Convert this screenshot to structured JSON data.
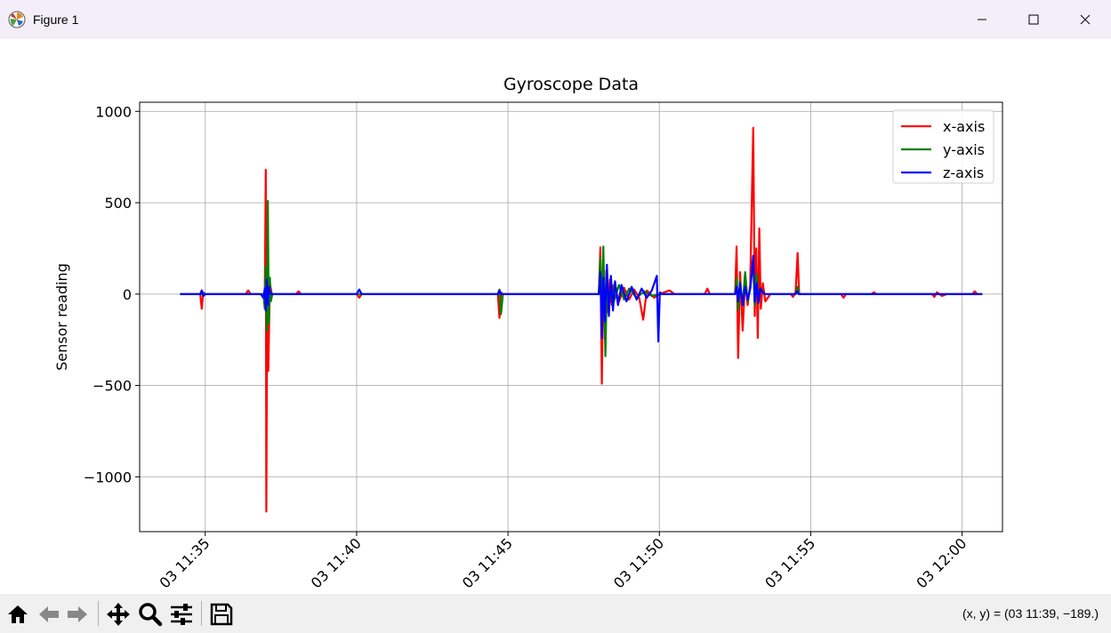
{
  "window": {
    "title": "Figure 1",
    "minimize_icon": "minimize-icon",
    "maximize_icon": "maximize-icon",
    "close_icon": "close-icon"
  },
  "toolbar": {
    "tools": [
      {
        "name": "home-icon"
      },
      {
        "name": "back-arrow-icon"
      },
      {
        "name": "forward-arrow-icon"
      },
      {
        "name": "pan-icon"
      },
      {
        "name": "zoom-icon"
      },
      {
        "name": "configure-subplots-icon"
      },
      {
        "name": "save-icon"
      }
    ],
    "coordinate_readout": "(x, y) = (03 11:39, −189.)"
  },
  "chart_data": {
    "type": "line",
    "title": "Gyroscope Data",
    "xlabel": "",
    "ylabel": "Sensor reading",
    "xlim": [
      "03 11:32:50",
      "03 12:01:20"
    ],
    "ylim": [
      -1300,
      1050
    ],
    "x_ticks": [
      "03 11:35",
      "03 11:40",
      "03 11:45",
      "03 11:50",
      "03 11:55",
      "03 12:00"
    ],
    "y_ticks": [
      {
        "value": 1000,
        "label": "1000"
      },
      {
        "value": 500,
        "label": "500"
      },
      {
        "value": 0,
        "label": "0"
      },
      {
        "value": -500,
        "label": "−500"
      },
      {
        "value": -1000,
        "label": "−1000"
      }
    ],
    "grid": true,
    "legend_position": "top-right",
    "series": [
      {
        "name": "x-axis",
        "color": "#ff0000",
        "points": [
          [
            "11:34:10",
            0
          ],
          [
            "11:34:50",
            0
          ],
          [
            "11:34:53",
            -80
          ],
          [
            "11:34:56",
            10
          ],
          [
            "11:35:00",
            0
          ],
          [
            "11:36:20",
            0
          ],
          [
            "11:36:25",
            20
          ],
          [
            "11:36:30",
            0
          ],
          [
            "11:36:58",
            0
          ],
          [
            "11:37:00",
            680
          ],
          [
            "11:37:01",
            -1190
          ],
          [
            "11:37:03",
            120
          ],
          [
            "11:37:05",
            -420
          ],
          [
            "11:37:08",
            60
          ],
          [
            "11:37:12",
            0
          ],
          [
            "11:38:00",
            0
          ],
          [
            "11:38:05",
            15
          ],
          [
            "11:38:10",
            0
          ],
          [
            "11:40:00",
            0
          ],
          [
            "11:40:05",
            -20
          ],
          [
            "11:40:10",
            0
          ],
          [
            "11:44:40",
            0
          ],
          [
            "11:44:43",
            -130
          ],
          [
            "11:44:46",
            10
          ],
          [
            "11:44:50",
            0
          ],
          [
            "11:48:00",
            0
          ],
          [
            "11:48:03",
            255
          ],
          [
            "11:48:06",
            -490
          ],
          [
            "11:48:09",
            200
          ],
          [
            "11:48:12",
            -250
          ],
          [
            "11:48:15",
            130
          ],
          [
            "11:48:18",
            -100
          ],
          [
            "11:48:22",
            80
          ],
          [
            "11:48:26",
            -60
          ],
          [
            "11:48:30",
            50
          ],
          [
            "11:48:40",
            -40
          ],
          [
            "11:48:50",
            35
          ],
          [
            "11:49:00",
            -30
          ],
          [
            "11:49:10",
            25
          ],
          [
            "11:49:20",
            -20
          ],
          [
            "11:49:28",
            -140
          ],
          [
            "11:49:35",
            20
          ],
          [
            "11:49:50",
            -20
          ],
          [
            "11:50:00",
            0
          ],
          [
            "11:50:20",
            20
          ],
          [
            "11:50:30",
            0
          ],
          [
            "11:51:30",
            0
          ],
          [
            "11:51:35",
            30
          ],
          [
            "11:51:40",
            0
          ],
          [
            "11:52:30",
            0
          ],
          [
            "11:52:33",
            260
          ],
          [
            "11:52:36",
            -350
          ],
          [
            "11:52:40",
            120
          ],
          [
            "11:52:45",
            -200
          ],
          [
            "11:52:50",
            80
          ],
          [
            "11:52:55",
            -60
          ],
          [
            "11:53:00",
            50
          ],
          [
            "11:53:06",
            910
          ],
          [
            "11:53:09",
            -120
          ],
          [
            "11:53:12",
            250
          ],
          [
            "11:53:15",
            -240
          ],
          [
            "11:53:18",
            360
          ],
          [
            "11:53:21",
            -80
          ],
          [
            "11:53:25",
            60
          ],
          [
            "11:53:30",
            -40
          ],
          [
            "11:53:40",
            0
          ],
          [
            "11:54:20",
            0
          ],
          [
            "11:54:25",
            -15
          ],
          [
            "11:54:30",
            10
          ],
          [
            "11:54:34",
            225
          ],
          [
            "11:54:37",
            0
          ],
          [
            "11:56:00",
            0
          ],
          [
            "11:56:05",
            -20
          ],
          [
            "11:56:10",
            0
          ],
          [
            "11:57:00",
            0
          ],
          [
            "11:57:05",
            10
          ],
          [
            "11:57:10",
            0
          ],
          [
            "11:59:00",
            0
          ],
          [
            "11:59:05",
            -15
          ],
          [
            "11:59:10",
            10
          ],
          [
            "11:59:20",
            -10
          ],
          [
            "11:59:30",
            0
          ],
          [
            "12:00:20",
            0
          ],
          [
            "12:00:25",
            15
          ],
          [
            "12:00:30",
            0
          ],
          [
            "12:00:40",
            0
          ]
        ]
      },
      {
        "name": "y-axis",
        "color": "#008000",
        "points": [
          [
            "11:34:10",
            0
          ],
          [
            "11:34:52",
            0
          ],
          [
            "11:34:55",
            10
          ],
          [
            "11:34:58",
            0
          ],
          [
            "11:36:55",
            0
          ],
          [
            "11:36:58",
            -80
          ],
          [
            "11:37:00",
            150
          ],
          [
            "11:37:02",
            -200
          ],
          [
            "11:37:04",
            510
          ],
          [
            "11:37:06",
            -160
          ],
          [
            "11:37:08",
            90
          ],
          [
            "11:37:10",
            -40
          ],
          [
            "11:37:13",
            0
          ],
          [
            "11:44:40",
            0
          ],
          [
            "11:44:43",
            25
          ],
          [
            "11:44:46",
            -110
          ],
          [
            "11:44:50",
            0
          ],
          [
            "11:48:00",
            0
          ],
          [
            "11:48:03",
            200
          ],
          [
            "11:48:06",
            -120
          ],
          [
            "11:48:09",
            260
          ],
          [
            "11:48:13",
            -340
          ],
          [
            "11:48:16",
            80
          ],
          [
            "11:48:20",
            -80
          ],
          [
            "11:48:25",
            60
          ],
          [
            "11:48:30",
            -40
          ],
          [
            "11:48:40",
            50
          ],
          [
            "11:48:50",
            -30
          ],
          [
            "11:49:00",
            30
          ],
          [
            "11:49:15",
            -20
          ],
          [
            "11:49:30",
            15
          ],
          [
            "11:49:45",
            -10
          ],
          [
            "11:50:00",
            0
          ],
          [
            "11:52:30",
            0
          ],
          [
            "11:52:33",
            90
          ],
          [
            "11:52:36",
            -90
          ],
          [
            "11:52:40",
            70
          ],
          [
            "11:52:45",
            -60
          ],
          [
            "11:52:50",
            120
          ],
          [
            "11:52:55",
            -40
          ],
          [
            "11:53:00",
            30
          ],
          [
            "11:53:06",
            180
          ],
          [
            "11:53:09",
            -60
          ],
          [
            "11:53:13",
            110
          ],
          [
            "11:53:16",
            -40
          ],
          [
            "11:53:20",
            30
          ],
          [
            "11:53:28",
            0
          ],
          [
            "11:54:30",
            0
          ],
          [
            "11:54:34",
            40
          ],
          [
            "11:54:37",
            0
          ],
          [
            "12:00:40",
            0
          ]
        ]
      },
      {
        "name": "z-axis",
        "color": "#0000ff",
        "points": [
          [
            "11:34:10",
            0
          ],
          [
            "11:34:50",
            0
          ],
          [
            "11:34:53",
            20
          ],
          [
            "11:34:56",
            -10
          ],
          [
            "11:35:00",
            0
          ],
          [
            "11:36:50",
            0
          ],
          [
            "11:36:55",
            -20
          ],
          [
            "11:36:58",
            30
          ],
          [
            "11:37:00",
            -90
          ],
          [
            "11:37:02",
            80
          ],
          [
            "11:37:04",
            -60
          ],
          [
            "11:37:06",
            40
          ],
          [
            "11:37:10",
            0
          ],
          [
            "11:40:00",
            0
          ],
          [
            "11:40:05",
            25
          ],
          [
            "11:40:10",
            0
          ],
          [
            "11:44:40",
            0
          ],
          [
            "11:44:43",
            20
          ],
          [
            "11:44:46",
            0
          ],
          [
            "11:48:00",
            0
          ],
          [
            "11:48:03",
            120
          ],
          [
            "11:48:06",
            -240
          ],
          [
            "11:48:09",
            90
          ],
          [
            "11:48:12",
            -150
          ],
          [
            "11:48:16",
            160
          ],
          [
            "11:48:20",
            -120
          ],
          [
            "11:48:24",
            100
          ],
          [
            "11:48:28",
            -90
          ],
          [
            "11:48:32",
            70
          ],
          [
            "11:48:38",
            -60
          ],
          [
            "11:48:45",
            50
          ],
          [
            "11:48:55",
            -40
          ],
          [
            "11:49:05",
            40
          ],
          [
            "11:49:15",
            -30
          ],
          [
            "11:49:25",
            30
          ],
          [
            "11:49:35",
            -20
          ],
          [
            "11:49:45",
            20
          ],
          [
            "11:49:55",
            100
          ],
          [
            "11:49:58",
            -260
          ],
          [
            "11:50:01",
            10
          ],
          [
            "11:50:05",
            0
          ],
          [
            "11:52:30",
            0
          ],
          [
            "11:52:33",
            40
          ],
          [
            "11:52:36",
            -40
          ],
          [
            "11:52:40",
            60
          ],
          [
            "11:52:45",
            -60
          ],
          [
            "11:52:50",
            40
          ],
          [
            "11:52:55",
            -30
          ],
          [
            "11:53:00",
            30
          ],
          [
            "11:53:06",
            210
          ],
          [
            "11:53:09",
            -40
          ],
          [
            "11:53:13",
            60
          ],
          [
            "11:53:16",
            -50
          ],
          [
            "11:53:20",
            30
          ],
          [
            "11:53:28",
            0
          ],
          [
            "11:54:30",
            0
          ],
          [
            "11:54:33",
            15
          ],
          [
            "11:54:36",
            0
          ],
          [
            "12:00:40",
            0
          ]
        ]
      }
    ]
  }
}
